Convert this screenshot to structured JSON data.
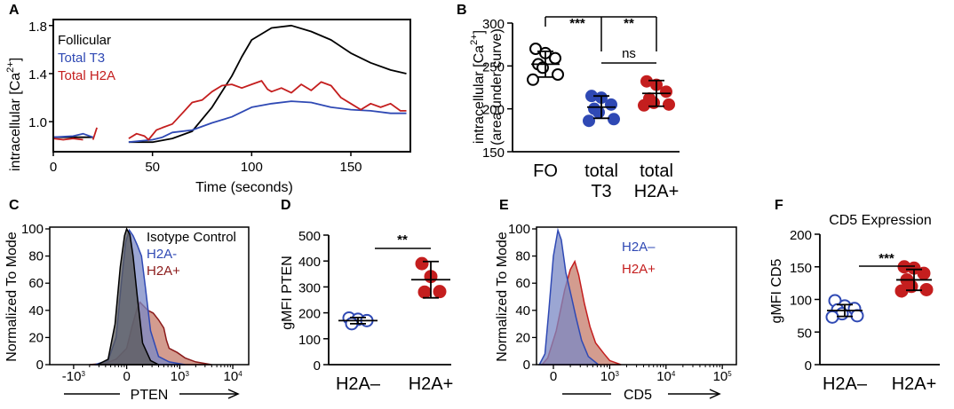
{
  "colors": {
    "black": "#000000",
    "blue": "#2f49b4",
    "red": "#c41e1e",
    "dark_red": "#8b1a1a",
    "blue_fill": "#7a88c4",
    "red_fill": "#c47b6a",
    "gray_fill": "#5a5a5a"
  },
  "chart_data": [
    {
      "id": "A",
      "panel_label": "A",
      "type": "line",
      "title": "",
      "xlabel": "Time (seconds)",
      "ylabel": "intracellular [Ca2+]",
      "ylabel_parts": [
        "intracellular [Ca",
        "2+",
        "]"
      ],
      "xlim": [
        0,
        180
      ],
      "ylim": [
        0.75,
        1.85
      ],
      "xticks": [
        0,
        50,
        100,
        150
      ],
      "yticks": [
        1.0,
        1.4,
        1.8
      ],
      "ytick_labels": [
        "1.0",
        "1.4",
        "1.8"
      ],
      "legend": [
        "Follicular",
        "Total T3",
        "Total H2A"
      ],
      "legend_position": "top-left",
      "series": [
        {
          "name": "Follicular",
          "color_key": "black",
          "segments": [
            [
              [
                0,
                0.87
              ],
              [
                20,
                0.87
              ]
            ],
            [
              [
                38,
                0.83
              ],
              [
                50,
                0.83
              ],
              [
                60,
                0.86
              ],
              [
                70,
                0.92
              ],
              [
                80,
                1.12
              ],
              [
                90,
                1.38
              ],
              [
                95,
                1.54
              ],
              [
                100,
                1.68
              ],
              [
                110,
                1.78
              ],
              [
                120,
                1.8
              ],
              [
                130,
                1.75
              ],
              [
                140,
                1.68
              ],
              [
                150,
                1.57
              ],
              [
                160,
                1.49
              ],
              [
                170,
                1.43
              ],
              [
                178,
                1.4
              ]
            ]
          ]
        },
        {
          "name": "Total T3",
          "color_key": "blue",
          "segments": [
            [
              [
                0,
                0.87
              ],
              [
                10,
                0.88
              ],
              [
                15,
                0.9
              ],
              [
                20,
                0.87
              ]
            ],
            [
              [
                38,
                0.83
              ],
              [
                50,
                0.85
              ],
              [
                55,
                0.87
              ],
              [
                60,
                0.91
              ],
              [
                70,
                0.93
              ],
              [
                80,
                0.99
              ],
              [
                90,
                1.04
              ],
              [
                100,
                1.12
              ],
              [
                110,
                1.15
              ],
              [
                120,
                1.17
              ],
              [
                130,
                1.16
              ],
              [
                140,
                1.12
              ],
              [
                150,
                1.1
              ],
              [
                160,
                1.09
              ],
              [
                170,
                1.07
              ],
              [
                178,
                1.07
              ]
            ]
          ]
        },
        {
          "name": "Total H2A",
          "color_key": "red",
          "segments": [
            [
              [
                0,
                0.86
              ],
              [
                5,
                0.85
              ],
              [
                10,
                0.86
              ],
              [
                15,
                0.85
              ]
            ],
            [
              [
                20,
                0.85
              ],
              [
                22,
                0.95
              ]
            ],
            [
              [
                38,
                0.86
              ],
              [
                42,
                0.9
              ],
              [
                46,
                0.88
              ],
              [
                48,
                0.85
              ],
              [
                52,
                0.93
              ],
              [
                55,
                0.95
              ],
              [
                60,
                0.98
              ],
              [
                65,
                1.07
              ],
              [
                70,
                1.16
              ],
              [
                75,
                1.18
              ],
              [
                80,
                1.25
              ],
              [
                85,
                1.3
              ],
              [
                90,
                1.31
              ],
              [
                95,
                1.28
              ],
              [
                100,
                1.31
              ],
              [
                105,
                1.34
              ],
              [
                108,
                1.27
              ],
              [
                110,
                1.25
              ],
              [
                115,
                1.28
              ],
              [
                120,
                1.24
              ],
              [
                125,
                1.31
              ],
              [
                130,
                1.26
              ],
              [
                135,
                1.33
              ],
              [
                140,
                1.3
              ],
              [
                145,
                1.2
              ],
              [
                150,
                1.15
              ],
              [
                155,
                1.1
              ],
              [
                160,
                1.15
              ],
              [
                165,
                1.12
              ],
              [
                170,
                1.15
              ],
              [
                175,
                1.09
              ],
              [
                178,
                1.09
              ]
            ]
          ]
        }
      ]
    },
    {
      "id": "B",
      "panel_label": "B",
      "type": "scatter",
      "ylabel_line1": [
        "intracellular [Ca",
        "2+",
        "]"
      ],
      "ylabel_line2": "(area under curve)",
      "ylim": [
        150,
        300
      ],
      "yticks": [
        150,
        200,
        250,
        300
      ],
      "categories": [
        [
          "FO"
        ],
        [
          "total",
          "T3"
        ],
        [
          "total",
          "H2A+"
        ]
      ],
      "groups": [
        {
          "name": "FO",
          "color_key": "black",
          "filled": false,
          "values": [
            270,
            265,
            259,
            252,
            248,
            240,
            234
          ],
          "mean": 252,
          "sd": 15
        },
        {
          "name": "total T3",
          "color_key": "blue",
          "filled": true,
          "values": [
            215,
            213,
            205,
            200,
            196,
            188,
            186
          ],
          "mean": 202,
          "sd": 13
        },
        {
          "name": "total H2A+",
          "color_key": "red",
          "filled": true,
          "values": [
            232,
            228,
            220,
            212,
            207,
            205,
            204
          ],
          "mean": 218,
          "sd": 15
        }
      ],
      "annotations": [
        {
          "from": 0,
          "to": 2,
          "label": "***"
        },
        {
          "from": 1,
          "to": 2,
          "label": "**"
        },
        {
          "from": 1,
          "to": 2,
          "label": "ns"
        }
      ]
    },
    {
      "id": "C",
      "panel_label": "C",
      "type": "area",
      "xlabel": "PTEN",
      "ylabel": "Normalized To Mode",
      "ylim": [
        0,
        100
      ],
      "yticks": [
        0,
        20,
        40,
        60,
        80,
        100
      ],
      "xticks_labels": [
        {
          "base": "-10",
          "exp": "3"
        },
        {
          "base": "0",
          "exp": ""
        },
        {
          "base": "10",
          "exp": "3"
        },
        {
          "base": "10",
          "exp": "4"
        }
      ],
      "xticks_pos": [
        -1,
        0,
        1,
        2
      ],
      "xlim": [
        -1.45,
        2.3
      ],
      "legend": [
        "Isotype Control",
        "H2A-",
        "H2A+"
      ],
      "legend_position": "top-right",
      "series": [
        {
          "name": "H2A+",
          "color_key": "dark_red",
          "fill_key": "red_fill",
          "points": [
            [
              -0.7,
              0
            ],
            [
              -0.4,
              1
            ],
            [
              -0.2,
              4
            ],
            [
              0,
              12
            ],
            [
              0.1,
              28
            ],
            [
              0.2,
              42
            ],
            [
              0.25,
              46
            ],
            [
              0.3,
              44
            ],
            [
              0.4,
              40
            ],
            [
              0.5,
              38
            ],
            [
              0.6,
              33
            ],
            [
              0.7,
              27
            ],
            [
              0.75,
              18
            ],
            [
              0.8,
              12
            ],
            [
              0.95,
              9
            ],
            [
              1.1,
              5
            ],
            [
              1.3,
              2
            ],
            [
              1.6,
              0
            ]
          ]
        },
        {
          "name": "H2A-",
          "color_key": "blue",
          "fill_key": "blue_fill",
          "points": [
            [
              -0.6,
              0
            ],
            [
              -0.35,
              3
            ],
            [
              -0.2,
              20
            ],
            [
              -0.1,
              60
            ],
            [
              -0.02,
              90
            ],
            [
              0.05,
              99
            ],
            [
              0.12,
              95
            ],
            [
              0.2,
              88
            ],
            [
              0.28,
              80
            ],
            [
              0.35,
              58
            ],
            [
              0.45,
              25
            ],
            [
              0.6,
              6
            ],
            [
              0.8,
              2
            ],
            [
              1.1,
              0
            ]
          ]
        },
        {
          "name": "Isotype Control",
          "color_key": "black",
          "fill_key": "gray_fill",
          "points": [
            [
              -0.55,
              0
            ],
            [
              -0.35,
              4
            ],
            [
              -0.22,
              30
            ],
            [
              -0.12,
              72
            ],
            [
              -0.04,
              95
            ],
            [
              0.0,
              100
            ],
            [
              0.06,
              96
            ],
            [
              0.12,
              80
            ],
            [
              0.2,
              50
            ],
            [
              0.3,
              16
            ],
            [
              0.45,
              3
            ],
            [
              0.6,
              0
            ]
          ]
        }
      ]
    },
    {
      "id": "D",
      "panel_label": "D",
      "type": "scatter",
      "ylabel": "gMFI PTEN",
      "ylim": [
        0,
        500
      ],
      "yticks": [
        0,
        100,
        200,
        300,
        400,
        500
      ],
      "categories": [
        [
          "H2A–"
        ],
        [
          "H2A+"
        ]
      ],
      "groups": [
        {
          "name": "H2A–",
          "color_key": "blue",
          "filled": false,
          "values": [
            180,
            175,
            170,
            158
          ],
          "mean": 170,
          "sd": 12
        },
        {
          "name": "H2A+",
          "color_key": "red",
          "filled": true,
          "values": [
            390,
            340,
            282,
            280
          ],
          "mean": 328,
          "sd": 70
        }
      ],
      "annotations": [
        {
          "from": 0,
          "to": 1,
          "label": "**"
        }
      ]
    },
    {
      "id": "E",
      "panel_label": "E",
      "type": "area",
      "xlabel": "CD5",
      "ylabel": "Normalized To Mode",
      "ylim": [
        0,
        100
      ],
      "yticks": [
        0,
        20,
        40,
        60,
        80,
        100
      ],
      "xticks_labels": [
        {
          "base": "0",
          "exp": ""
        },
        {
          "base": "10",
          "exp": "3"
        },
        {
          "base": "10",
          "exp": "4"
        },
        {
          "base": "10",
          "exp": "5"
        }
      ],
      "xticks_pos": [
        0,
        1,
        2,
        3
      ],
      "xlim": [
        -0.3,
        3.25
      ],
      "legend": [
        "H2A–",
        "H2A+"
      ],
      "legend_position": "top-right",
      "series": [
        {
          "name": "H2A+",
          "color_key": "red",
          "fill_key": "red_fill",
          "points": [
            [
              -0.2,
              0
            ],
            [
              -0.1,
              5
            ],
            [
              0.05,
              25
            ],
            [
              0.2,
              55
            ],
            [
              0.3,
              70
            ],
            [
              0.38,
              76
            ],
            [
              0.45,
              66
            ],
            [
              0.55,
              45
            ],
            [
              0.65,
              28
            ],
            [
              0.75,
              16
            ],
            [
              0.9,
              8
            ],
            [
              1.0,
              3
            ],
            [
              1.2,
              0
            ]
          ]
        },
        {
          "name": "H2A–",
          "color_key": "blue",
          "fill_key": "blue_fill",
          "points": [
            [
              -0.25,
              0
            ],
            [
              -0.15,
              8
            ],
            [
              -0.08,
              40
            ],
            [
              0.0,
              80
            ],
            [
              0.08,
              99
            ],
            [
              0.14,
              92
            ],
            [
              0.22,
              68
            ],
            [
              0.32,
              50
            ],
            [
              0.4,
              35
            ],
            [
              0.5,
              18
            ],
            [
              0.62,
              6
            ],
            [
              0.8,
              0
            ]
          ]
        }
      ]
    },
    {
      "id": "F",
      "panel_label": "F",
      "type": "scatter",
      "title": "CD5 Expression",
      "ylabel": "gMFI CD5",
      "ylim": [
        0,
        200
      ],
      "yticks": [
        0,
        50,
        100,
        150,
        200
      ],
      "categories": [
        [
          "H2A–"
        ],
        [
          "H2A+"
        ]
      ],
      "groups": [
        {
          "name": "H2A–",
          "color_key": "blue",
          "filled": false,
          "values": [
            98,
            90,
            86,
            84,
            78,
            75,
            73
          ],
          "mean": 83,
          "sd": 9
        },
        {
          "name": "H2A+",
          "color_key": "red",
          "filled": true,
          "values": [
            150,
            148,
            140,
            130,
            120,
            115,
            113
          ],
          "mean": 130,
          "sd": 16
        }
      ],
      "annotations": [
        {
          "from": 0,
          "to": 1,
          "label": "***"
        }
      ]
    }
  ]
}
